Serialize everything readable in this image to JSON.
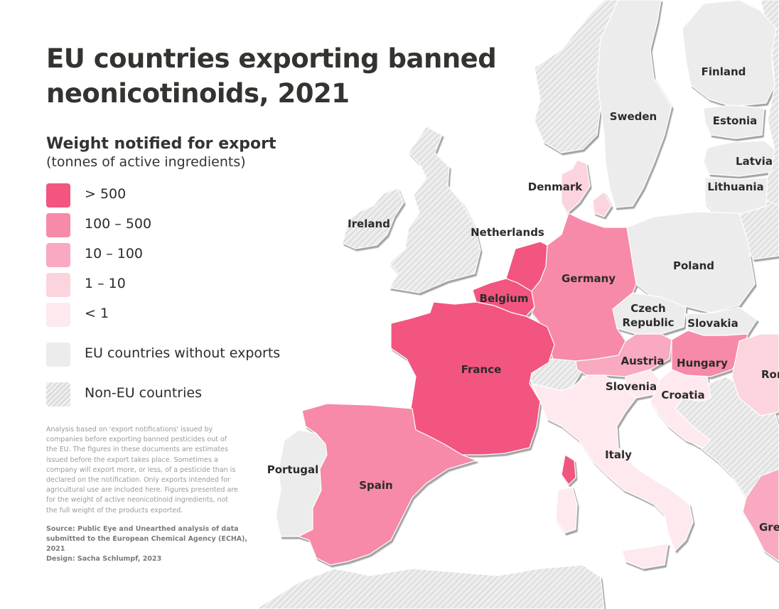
{
  "title": "EU countries exporting banned neonicotinoids, 2021",
  "legend": {
    "title": "Weight notified for export",
    "subtitle": "(tonnes of active ingredients)",
    "items": [
      {
        "label": "> 500",
        "color": "#f2557f"
      },
      {
        "label": "100 – 500",
        "color": "#f68aa8"
      },
      {
        "label": "10 – 100",
        "color": "#f9a9c0"
      },
      {
        "label": "1 – 10",
        "color": "#fcd4de"
      },
      {
        "label": "< 1",
        "color": "#fde9ee"
      },
      {
        "label": "EU countries without exports",
        "color": "#ececec"
      },
      {
        "label": "Non-EU countries",
        "color": "hatch"
      }
    ]
  },
  "note": "Analysis based on 'export notifications' issued by companies before exporting banned pesticides out of the EU. The figures in these documents are estimates issued before the export takes place. Sometimes a company will export more, or less, of a pesticide than is declared on the notification. Only exports intended for agricultural use are included here. Figures presented are for the weight of active neonicotinoid ingredients, not the full weight of the products exported.",
  "source": "Source: Public Eye and Unearthed analysis of data submitted to the European Chemical Agency (ECHA), 2021",
  "design": "Design: Sacha Schlumpf, 2023",
  "countries": [
    {
      "name": "Finland",
      "category": "EU countries without exports"
    },
    {
      "name": "Sweden",
      "category": "EU countries without exports"
    },
    {
      "name": "Estonia",
      "category": "EU countries without exports"
    },
    {
      "name": "Latvia",
      "category": "EU countries without exports"
    },
    {
      "name": "Lithuania",
      "category": "EU countries without exports"
    },
    {
      "name": "Denmark",
      "category": "1 – 10"
    },
    {
      "name": "Ireland",
      "category": "Non-EU countries"
    },
    {
      "name": "Netherlands",
      "category": "> 500"
    },
    {
      "name": "Germany",
      "category": "100 – 500"
    },
    {
      "name": "Poland",
      "category": "EU countries without exports"
    },
    {
      "name": "Belgium",
      "category": "> 500"
    },
    {
      "name": "Czech Republic",
      "category": "EU countries without exports"
    },
    {
      "name": "Slovakia",
      "category": "EU countries without exports"
    },
    {
      "name": "France",
      "category": "> 500"
    },
    {
      "name": "Austria",
      "category": "10 – 100"
    },
    {
      "name": "Hungary",
      "category": "100 – 500"
    },
    {
      "name": "Slovenia",
      "category": "< 1"
    },
    {
      "name": "Croatia",
      "category": "< 1"
    },
    {
      "name": "Italy",
      "category": "< 1"
    },
    {
      "name": "Portugal",
      "category": "EU countries without exports"
    },
    {
      "name": "Spain",
      "category": "100 – 500"
    },
    {
      "name": "Ror",
      "category": "1 – 10"
    },
    {
      "name": "Gre",
      "category": "10 – 100"
    }
  ]
}
